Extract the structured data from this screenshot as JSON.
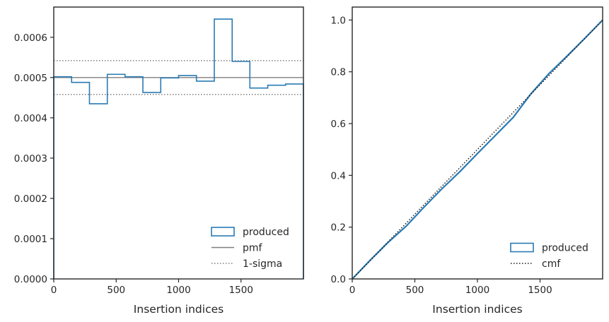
{
  "chart_data": [
    {
      "type": "histogram-step",
      "xlabel": "Insertion indices",
      "ylabel": "",
      "xlim": [
        0,
        2000
      ],
      "ylim": [
        0,
        0.000675
      ],
      "xticks": [
        0,
        500,
        1000,
        1500
      ],
      "xtick_labels": [
        "0",
        "500",
        "1000",
        "1500"
      ],
      "yticks": [
        0,
        0.0001,
        0.0002,
        0.0003,
        0.0004,
        0.0005,
        0.0006
      ],
      "ytick_labels": [
        "0.0000",
        "0.0001",
        "0.0002",
        "0.0003",
        "0.0004",
        "0.0005",
        "0.0006"
      ],
      "bin_edges": [
        0,
        143,
        286,
        429,
        571,
        714,
        857,
        1000,
        1143,
        1286,
        1429,
        1571,
        1714,
        1857,
        2000
      ],
      "values": [
        0.000502,
        0.000488,
        0.000435,
        0.000508,
        0.000502,
        0.000463,
        0.000499,
        0.000505,
        0.000491,
        0.000645,
        0.00054,
        0.000474,
        0.000481,
        0.000484
      ],
      "pmf": 0.0005,
      "sigma_band": [
        0.000458,
        0.000542
      ],
      "colors": {
        "produced": "#2a7bb4",
        "pmf": "#7f7f7f",
        "sigma": "#7f7f7f"
      },
      "legend": {
        "placement": "lower-right",
        "entries": [
          {
            "label": "produced",
            "kind": "patch",
            "color": "#2a7bb4"
          },
          {
            "label": "pmf",
            "kind": "line",
            "color": "#7f7f7f"
          },
          {
            "label": "1-sigma",
            "kind": "dotted",
            "color": "#7f7f7f"
          }
        ]
      }
    },
    {
      "type": "line",
      "xlabel": "Insertion indices",
      "ylabel": "",
      "xlim": [
        0,
        2000
      ],
      "ylim": [
        0,
        1.05
      ],
      "xticks": [
        0,
        500,
        1000,
        1500
      ],
      "xtick_labels": [
        "0",
        "500",
        "1000",
        "1500"
      ],
      "yticks": [
        0,
        0.2,
        0.4,
        0.6,
        0.8,
        1.0
      ],
      "ytick_labels": [
        "0.0",
        "0.2",
        "0.4",
        "0.6",
        "0.8",
        "1.0"
      ],
      "series": [
        {
          "name": "produced",
          "style": "solid",
          "color": "#2a7bb4",
          "x": [
            0,
            143,
            286,
            429,
            571,
            714,
            857,
            1000,
            1143,
            1286,
            1429,
            1571,
            1714,
            1857,
            2000
          ],
          "y": [
            0,
            0.072,
            0.141,
            0.203,
            0.276,
            0.347,
            0.413,
            0.484,
            0.554,
            0.624,
            0.716,
            0.793,
            0.86,
            0.929,
            1.0
          ]
        },
        {
          "name": "cmf",
          "style": "dotted",
          "color": "#1a1a1a",
          "x": [
            0,
            2000
          ],
          "y": [
            0,
            1.0
          ]
        }
      ],
      "legend": {
        "placement": "lower-right",
        "entries": [
          {
            "label": "produced",
            "kind": "patch",
            "color": "#2a7bb4"
          },
          {
            "label": "cmf",
            "kind": "dotted",
            "color": "#1a1a1a"
          }
        ]
      }
    }
  ]
}
